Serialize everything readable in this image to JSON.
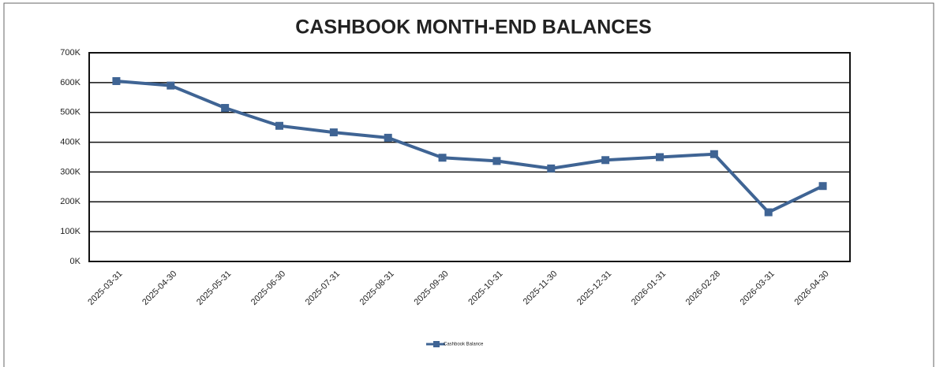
{
  "chart_data": {
    "type": "line",
    "title": "CASHBOOK MONTH-END BALANCES",
    "categories": [
      "2025-03-31",
      "2025-04-30",
      "2025-05-31",
      "2025-06-30",
      "2025-07-31",
      "2025-08-31",
      "2025-09-30",
      "2025-10-31",
      "2025-11-30",
      "2025-12-31",
      "2026-01-31",
      "2026-02-28",
      "2026-03-31",
      "2026-04-30"
    ],
    "series": [
      {
        "name": "Cashbook Balance",
        "color": "#3f6494",
        "values": [
          605000,
          590000,
          515000,
          455000,
          433000,
          415000,
          348000,
          337000,
          312000,
          340000,
          350000,
          360000,
          165000,
          253000
        ]
      }
    ],
    "ylim": [
      0,
      700000
    ],
    "yticks": [
      {
        "value": 0,
        "label": "0K"
      },
      {
        "value": 100000,
        "label": "100K"
      },
      {
        "value": 200000,
        "label": "200K"
      },
      {
        "value": 300000,
        "label": "300K"
      },
      {
        "value": 400000,
        "label": "400K"
      },
      {
        "value": 500000,
        "label": "500K"
      },
      {
        "value": 600000,
        "label": "600K"
      },
      {
        "value": 700000,
        "label": "700K"
      }
    ],
    "grid": true,
    "legend": "bottom"
  }
}
